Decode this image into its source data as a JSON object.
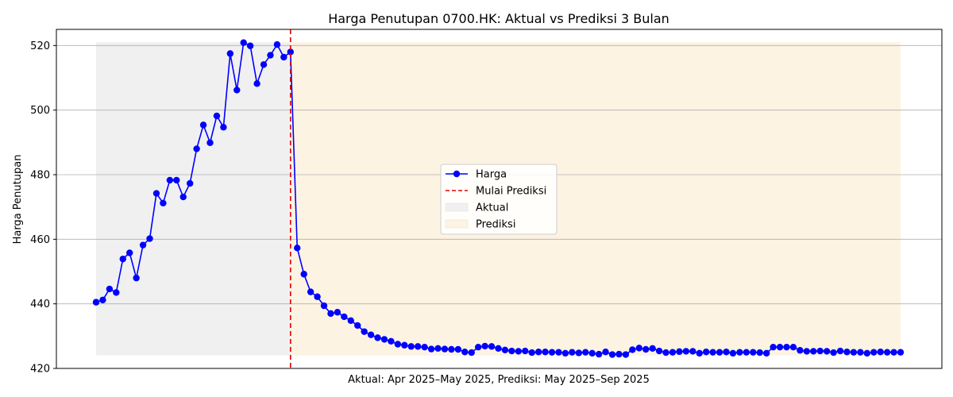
{
  "chart_data": {
    "type": "line",
    "title": "Harga Penutupan 0700.HK: Aktual vs Prediksi 3 Bulan",
    "xlabel": "Aktual: Apr 2025–May 2025, Prediksi: May 2025–Sep 2025",
    "ylabel": "Harga Penutupan",
    "ylim": [
      420,
      525
    ],
    "yticks": [
      420,
      440,
      460,
      480,
      500,
      520
    ],
    "grid": "y",
    "legend_position": "center",
    "series": [
      {
        "name": "Harga",
        "color": "#0000ff",
        "values": [
          440.5,
          441.2,
          444.6,
          443.5,
          453.9,
          455.8,
          448.0,
          458.2,
          460.2,
          474.2,
          471.2,
          478.3,
          478.3,
          473.1,
          477.3,
          488.0,
          495.4,
          489.9,
          498.2,
          494.7,
          517.5,
          506.2,
          520.9,
          519.9,
          508.2,
          514.1,
          517.0,
          520.3,
          516.4,
          518.0,
          457.3,
          449.2,
          443.7,
          442.2,
          439.4,
          437.0,
          437.4,
          436.0,
          434.8,
          433.3,
          431.4,
          430.4,
          429.5,
          429.0,
          428.4,
          427.5,
          427.2,
          426.8,
          426.8,
          426.6,
          426.0,
          426.2,
          426.0,
          425.9,
          425.9,
          425.1,
          424.9,
          426.6,
          426.9,
          426.8,
          426.2,
          425.7,
          425.4,
          425.3,
          425.4,
          424.9,
          425.1,
          425.1,
          425.0,
          425.0,
          424.7,
          425.0,
          424.8,
          425.0,
          424.7,
          424.4,
          425.1,
          424.3,
          424.4,
          424.3,
          425.8,
          426.3,
          425.9,
          426.2,
          425.4,
          424.9,
          425.0,
          425.2,
          425.3,
          425.3,
          424.7,
          425.1,
          425.0,
          425.0,
          425.1,
          424.7,
          425.0,
          425.0,
          425.0,
          424.9,
          424.7,
          426.6,
          426.6,
          426.6,
          426.6,
          425.6,
          425.3,
          425.3,
          425.4,
          425.3,
          424.9,
          425.4,
          425.1,
          425.0,
          425.0,
          424.7,
          425.0,
          425.1,
          425.0,
          425.0,
          425.0
        ]
      }
    ],
    "vline": {
      "name": "Mulai Prediksi",
      "color": "#e00000",
      "at_index": 29
    },
    "regions": [
      {
        "name": "Aktual",
        "color": "#f0f0f0",
        "from_index": 0,
        "to_index": 29
      },
      {
        "name": "Prediksi",
        "color": "#fdf3e3",
        "from_index": 29,
        "to_index": 120
      }
    ],
    "legend": [
      {
        "label": "Harga",
        "kind": "line-marker",
        "color": "#0000ff"
      },
      {
        "label": "Mulai Prediksi",
        "kind": "dashed",
        "color": "#e00000"
      },
      {
        "label": "Aktual",
        "kind": "patch",
        "color": "#f0f0f0"
      },
      {
        "label": "Prediksi",
        "kind": "patch",
        "color": "#fdf3e3"
      }
    ]
  }
}
